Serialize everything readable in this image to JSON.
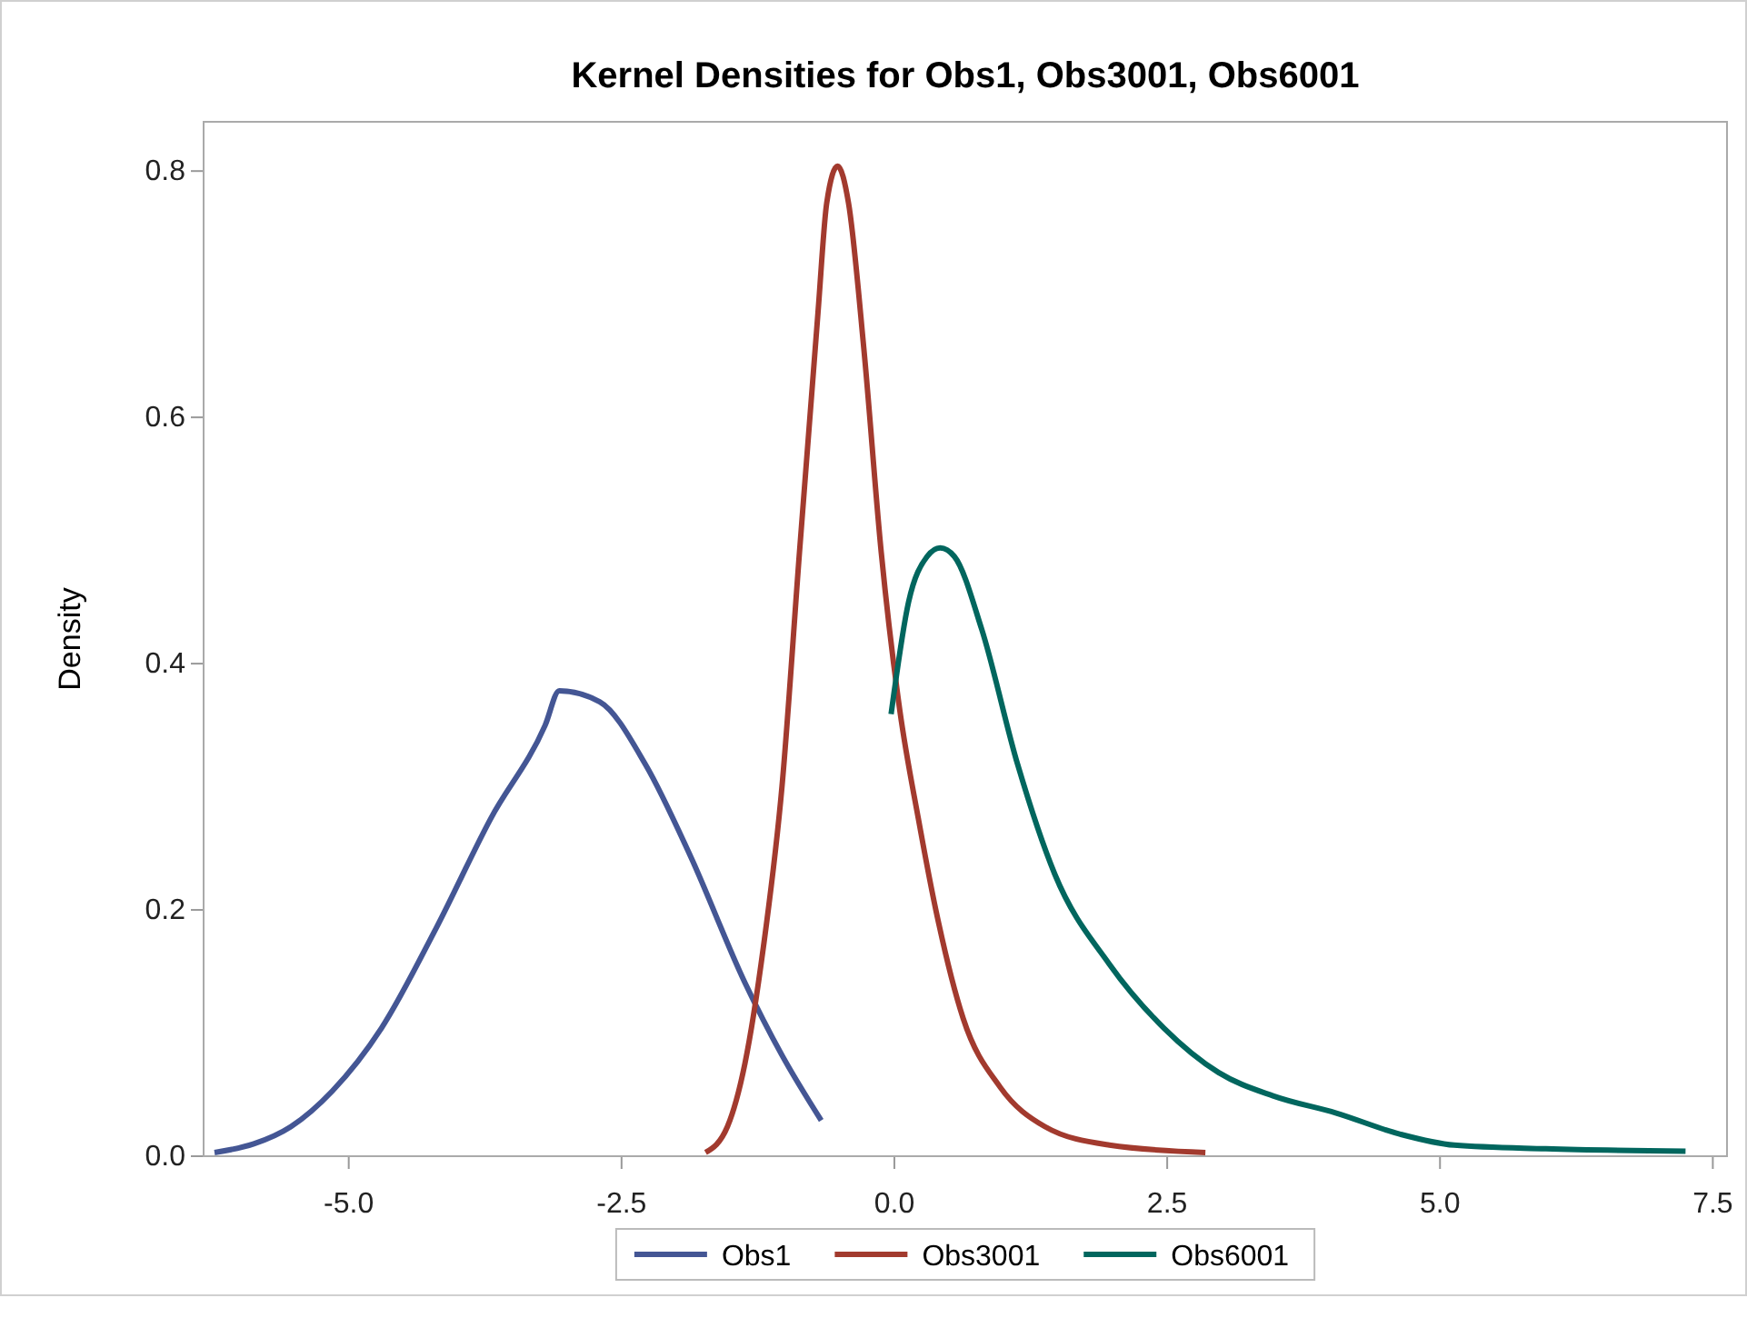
{
  "chart_data": {
    "type": "line",
    "title": "Kernel Densities for Obs1, Obs3001, Obs6001",
    "ylabel": "Density",
    "xlim": [
      -6.33,
      7.63
    ],
    "ylim": [
      0,
      0.84
    ],
    "xticks": [
      {
        "value": -5,
        "label": "-5.0"
      },
      {
        "value": -2.5,
        "label": "-2.5"
      },
      {
        "value": 0,
        "label": "0.0"
      },
      {
        "value": 2.5,
        "label": "2.5"
      },
      {
        "value": 5,
        "label": "5.0"
      },
      {
        "value": 7.5,
        "label": "7.5"
      }
    ],
    "yticks": [
      {
        "value": 0,
        "label": "0.0"
      },
      {
        "value": 0.2,
        "label": "0.2"
      },
      {
        "value": 0.4,
        "label": "0.4"
      },
      {
        "value": 0.6,
        "label": "0.6"
      },
      {
        "value": 0.8,
        "label": "0.8"
      }
    ],
    "grid": false,
    "legend": "bottom",
    "marker": "none",
    "line_style": "solid",
    "series": [
      {
        "name": "Obs1",
        "color": "#445694",
        "x": [
          -6.23,
          -5.87,
          -5.53,
          -5.15,
          -4.7,
          -4.2,
          -3.7,
          -3.2,
          -3.07,
          -2.7,
          -2.28,
          -1.87,
          -1.37,
          -1.03,
          -0.67
        ],
        "values": [
          0.003,
          0.01,
          0.024,
          0.053,
          0.104,
          0.185,
          0.274,
          0.35,
          0.378,
          0.369,
          0.318,
          0.244,
          0.141,
          0.082,
          0.029
        ]
      },
      {
        "name": "Obs3001",
        "color": "#a23a2e",
        "x": [
          -1.73,
          -1.53,
          -1.37,
          -1.2,
          -1.03,
          -0.87,
          -0.7,
          -0.62,
          -0.52,
          -0.42,
          -0.28,
          -0.12,
          0.05,
          0.22,
          0.38,
          0.63,
          0.97,
          1.38,
          1.97,
          2.85
        ],
        "values": [
          0.003,
          0.024,
          0.075,
          0.17,
          0.3,
          0.49,
          0.685,
          0.774,
          0.804,
          0.774,
          0.656,
          0.49,
          0.362,
          0.274,
          0.2,
          0.112,
          0.056,
          0.024,
          0.009,
          0.003
        ]
      },
      {
        "name": "Obs6001",
        "color": "#01665e",
        "x": [
          -0.03,
          0.13,
          0.3,
          0.42,
          0.55,
          0.8,
          1.13,
          1.47,
          1.97,
          2.47,
          2.97,
          3.47,
          4.05,
          4.63,
          5.13,
          5.97,
          7.25
        ],
        "values": [
          0.359,
          0.45,
          0.487,
          0.494,
          0.487,
          0.428,
          0.318,
          0.229,
          0.156,
          0.104,
          0.068,
          0.049,
          0.035,
          0.018,
          0.009,
          0.006,
          0.004
        ]
      }
    ]
  }
}
